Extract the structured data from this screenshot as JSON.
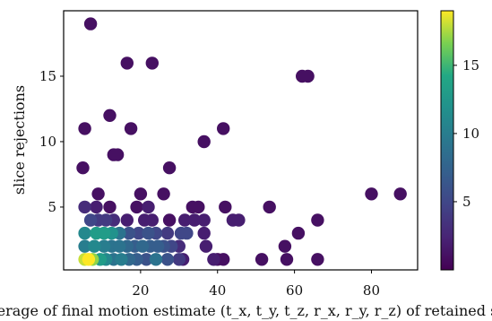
{
  "chart_data": {
    "type": "scatter",
    "xlabel": "verage of final motion estimate (t_x, t_y, t_z, r_x, r_y, r_z) of retained sl",
    "ylabel": "slice rejections",
    "xlim": [
      0,
      92
    ],
    "ylim": [
      0.2,
      20
    ],
    "x_ticks": [
      20,
      40,
      60,
      80
    ],
    "y_ticks": [
      5,
      10,
      15
    ],
    "colorbar": {
      "colormap": "viridis",
      "range": [
        0,
        19
      ],
      "ticks": [
        5,
        10,
        15
      ]
    },
    "grid": false,
    "points": [
      {
        "x": 6.5,
        "y": 1,
        "c": 19
      },
      {
        "x": 5.5,
        "y": 1,
        "c": 18
      },
      {
        "x": 7.5,
        "y": 1,
        "c": 17
      },
      {
        "x": 9.5,
        "y": 1,
        "c": 13
      },
      {
        "x": 11,
        "y": 1,
        "c": 11
      },
      {
        "x": 13,
        "y": 1,
        "c": 9
      },
      {
        "x": 15,
        "y": 1,
        "c": 10
      },
      {
        "x": 17,
        "y": 1,
        "c": 8
      },
      {
        "x": 19,
        "y": 1,
        "c": 7
      },
      {
        "x": 21.5,
        "y": 1,
        "c": 6
      },
      {
        "x": 24,
        "y": 1,
        "c": 9
      },
      {
        "x": 27,
        "y": 1,
        "c": 6
      },
      {
        "x": 30,
        "y": 1,
        "c": 4
      },
      {
        "x": 31,
        "y": 1,
        "c": 2
      },
      {
        "x": 39,
        "y": 1,
        "c": 2
      },
      {
        "x": 40,
        "y": 1,
        "c": 1
      },
      {
        "x": 41.5,
        "y": 1,
        "c": 1
      },
      {
        "x": 51.5,
        "y": 1,
        "c": 1
      },
      {
        "x": 58,
        "y": 1,
        "c": 1
      },
      {
        "x": 66,
        "y": 1,
        "c": 1
      },
      {
        "x": 5.5,
        "y": 2,
        "c": 10
      },
      {
        "x": 8,
        "y": 2,
        "c": 11
      },
      {
        "x": 10.5,
        "y": 2,
        "c": 10
      },
      {
        "x": 12.5,
        "y": 2,
        "c": 9
      },
      {
        "x": 14.5,
        "y": 2,
        "c": 9
      },
      {
        "x": 16.5,
        "y": 2,
        "c": 8
      },
      {
        "x": 18.5,
        "y": 2,
        "c": 7
      },
      {
        "x": 20.5,
        "y": 2,
        "c": 8
      },
      {
        "x": 22.5,
        "y": 2,
        "c": 7
      },
      {
        "x": 24.5,
        "y": 2,
        "c": 7
      },
      {
        "x": 26,
        "y": 2,
        "c": 6
      },
      {
        "x": 28,
        "y": 2,
        "c": 5
      },
      {
        "x": 30,
        "y": 2,
        "c": 3
      },
      {
        "x": 37,
        "y": 2,
        "c": 2
      },
      {
        "x": 57.5,
        "y": 2,
        "c": 1
      },
      {
        "x": 5.5,
        "y": 3,
        "c": 11
      },
      {
        "x": 8.5,
        "y": 3,
        "c": 13
      },
      {
        "x": 10.5,
        "y": 3,
        "c": 13
      },
      {
        "x": 12.5,
        "y": 3,
        "c": 12
      },
      {
        "x": 14.5,
        "y": 3,
        "c": 9
      },
      {
        "x": 17,
        "y": 3,
        "c": 6
      },
      {
        "x": 19.5,
        "y": 3,
        "c": 5
      },
      {
        "x": 22,
        "y": 3,
        "c": 6
      },
      {
        "x": 24,
        "y": 3,
        "c": 5
      },
      {
        "x": 27,
        "y": 3,
        "c": 4
      },
      {
        "x": 30.5,
        "y": 3,
        "c": 5
      },
      {
        "x": 32,
        "y": 3,
        "c": 5
      },
      {
        "x": 36.5,
        "y": 3,
        "c": 2
      },
      {
        "x": 61,
        "y": 3,
        "c": 1
      },
      {
        "x": 7,
        "y": 4,
        "c": 5
      },
      {
        "x": 9,
        "y": 4,
        "c": 4
      },
      {
        "x": 11,
        "y": 4,
        "c": 4
      },
      {
        "x": 13,
        "y": 4,
        "c": 3
      },
      {
        "x": 16.5,
        "y": 4,
        "c": 2
      },
      {
        "x": 21,
        "y": 4,
        "c": 2
      },
      {
        "x": 23,
        "y": 4,
        "c": 2
      },
      {
        "x": 27.5,
        "y": 4,
        "c": 1
      },
      {
        "x": 31.5,
        "y": 4,
        "c": 2
      },
      {
        "x": 34,
        "y": 4,
        "c": 2
      },
      {
        "x": 36.5,
        "y": 4,
        "c": 2
      },
      {
        "x": 44,
        "y": 4,
        "c": 2
      },
      {
        "x": 45.5,
        "y": 4,
        "c": 2
      },
      {
        "x": 66,
        "y": 4,
        "c": 1
      },
      {
        "x": 5.5,
        "y": 5,
        "c": 3
      },
      {
        "x": 8.5,
        "y": 5,
        "c": 2
      },
      {
        "x": 12,
        "y": 5,
        "c": 1
      },
      {
        "x": 19,
        "y": 5,
        "c": 1
      },
      {
        "x": 22,
        "y": 5,
        "c": 2
      },
      {
        "x": 33.5,
        "y": 5,
        "c": 1
      },
      {
        "x": 35,
        "y": 5,
        "c": 1
      },
      {
        "x": 42,
        "y": 5,
        "c": 1
      },
      {
        "x": 53.5,
        "y": 5,
        "c": 1
      },
      {
        "x": 9,
        "y": 6,
        "c": 1
      },
      {
        "x": 20,
        "y": 6,
        "c": 1
      },
      {
        "x": 26,
        "y": 6,
        "c": 1
      },
      {
        "x": 80,
        "y": 6,
        "c": 1
      },
      {
        "x": 87.5,
        "y": 6,
        "c": 1
      },
      {
        "x": 5,
        "y": 8,
        "c": 1
      },
      {
        "x": 27.5,
        "y": 8,
        "c": 1
      },
      {
        "x": 13,
        "y": 9,
        "c": 1
      },
      {
        "x": 14,
        "y": 9,
        "c": 1
      },
      {
        "x": 36.5,
        "y": 10,
        "c": 1
      },
      {
        "x": 5.5,
        "y": 11,
        "c": 1
      },
      {
        "x": 17.5,
        "y": 11,
        "c": 1
      },
      {
        "x": 41.5,
        "y": 11,
        "c": 1
      },
      {
        "x": 12,
        "y": 12,
        "c": 1
      },
      {
        "x": 62,
        "y": 15,
        "c": 1
      },
      {
        "x": 63.5,
        "y": 15,
        "c": 1
      },
      {
        "x": 16.5,
        "y": 16,
        "c": 1
      },
      {
        "x": 23,
        "y": 16,
        "c": 1
      },
      {
        "x": 7,
        "y": 19,
        "c": 1
      }
    ]
  }
}
